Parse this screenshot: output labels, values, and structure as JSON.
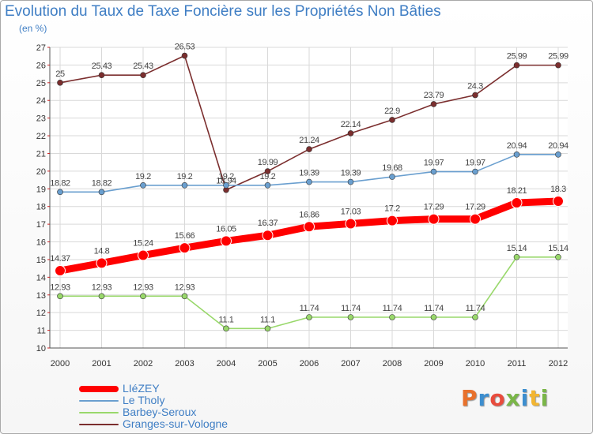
{
  "header": {
    "title": "Evolution du Taux de Taxe Foncière sur les Propriétés Non Bâties",
    "unit": "(en %)"
  },
  "logo": {
    "text": "Proxiti",
    "colors": [
      "#e8712c",
      "#3d8ecf",
      "#e84c3d",
      "#7ab648",
      "#3d8ecf",
      "#f2b531",
      "#7ab648"
    ]
  },
  "chart_data": {
    "type": "line",
    "x": [
      "2000",
      "2001",
      "2002",
      "2003",
      "2004",
      "2005",
      "2006",
      "2007",
      "2008",
      "2009",
      "2010",
      "2011",
      "2012"
    ],
    "ylim": [
      10,
      27
    ],
    "yticks": [
      "10",
      "11",
      "12",
      "13",
      "14",
      "15",
      "16",
      "17",
      "18",
      "19",
      "20",
      "21",
      "22",
      "23",
      "24",
      "25",
      "26",
      "27"
    ],
    "grid": true,
    "legend_position": "bottom-left",
    "series": [
      {
        "name": "LIéZEY",
        "color": "#ff0000",
        "values": [
          14.37,
          14.8,
          15.24,
          15.66,
          16.05,
          16.37,
          16.86,
          17.03,
          17.2,
          17.29,
          17.29,
          18.21,
          18.3
        ],
        "labels": [
          "14.37",
          "14.8",
          "15.24",
          "15.66",
          "16.05",
          "16.37",
          "16.86",
          "17.03",
          "17.2",
          "17.29",
          "17.29",
          "18.21",
          "18.3"
        ]
      },
      {
        "name": "Le Tholy",
        "color": "#6a9fcf",
        "values": [
          18.82,
          18.82,
          19.2,
          19.2,
          19.2,
          19.2,
          19.39,
          19.39,
          19.68,
          19.97,
          19.97,
          20.94,
          20.94
        ],
        "labels": [
          "18.82",
          "18.82",
          "19.2",
          "19.2",
          "19.2",
          "19.2",
          "19.39",
          "19.39",
          "19.68",
          "19.97",
          "19.97",
          "20.94",
          "20.94"
        ]
      },
      {
        "name": "Barbey-Seroux",
        "color": "#99d86b",
        "values": [
          12.93,
          12.93,
          12.93,
          12.93,
          11.1,
          11.1,
          11.74,
          11.74,
          11.74,
          11.74,
          11.74,
          15.14,
          15.14
        ],
        "labels": [
          "12.93",
          "12.93",
          "12.93",
          "12.93",
          "11.1",
          "11.1",
          "11.74",
          "11.74",
          "11.74",
          "11.74",
          "11.74",
          "15.14",
          "15.14"
        ]
      },
      {
        "name": "Granges-sur-Vologne",
        "color": "#7b2e2e",
        "values": [
          25,
          25.43,
          25.43,
          26.53,
          18.94,
          19.99,
          21.24,
          22.14,
          22.9,
          23.79,
          24.3,
          25.99,
          25.99
        ],
        "labels": [
          "25",
          "25.43",
          "25.43",
          "26.53",
          "18.94",
          "19.99",
          "21.24",
          "22.14",
          "22.9",
          "23.79",
          "24.3",
          "25.99",
          "25.99"
        ]
      }
    ]
  }
}
